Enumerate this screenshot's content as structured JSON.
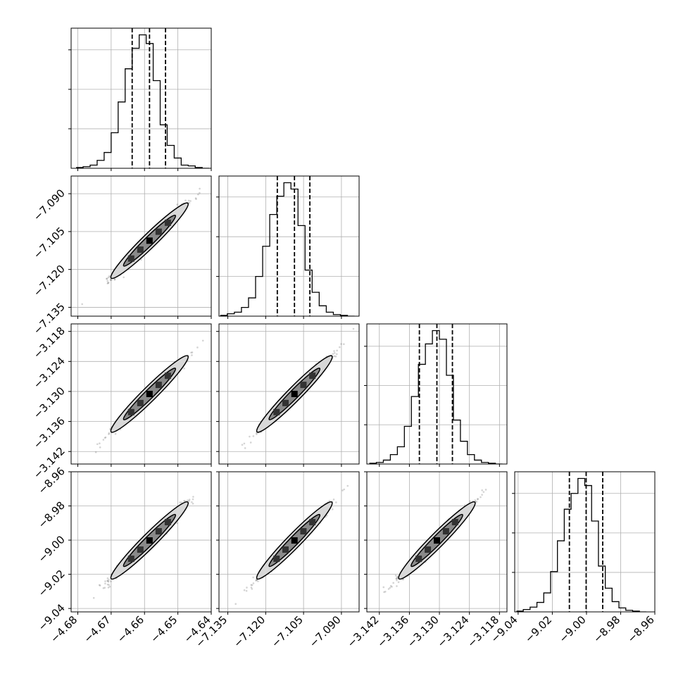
{
  "chart_data": {
    "type": "corner",
    "grid": true,
    "colors": {
      "line": "#000000",
      "grid": "#b0b0b0",
      "scatter": "#555555",
      "background": "#ffffff"
    },
    "parameters": [
      {
        "range": [
          -4.682,
          -4.64
        ],
        "ticks": [
          -4.68,
          -4.67,
          -4.66,
          -4.65,
          -4.64
        ],
        "tick_labels": [
          "−4.68",
          "−4.67",
          "−4.66",
          "−4.65",
          "−4.64"
        ],
        "quantiles": [
          -4.6637,
          -4.6585,
          -4.6537
        ],
        "histogram": {
          "bin_edges": [
            -4.6805,
            -4.6784,
            -4.6763,
            -4.6742,
            -4.6721,
            -4.67,
            -4.6679,
            -4.6658,
            -4.6637,
            -4.6616,
            -4.6595,
            -4.6574,
            -4.6553,
            -4.6532,
            -4.6511,
            -4.649,
            -4.6469,
            -4.6448,
            -4.6427,
            -4.6406
          ],
          "counts": [
            1,
            2,
            4,
            10,
            20,
            45,
            84,
            126,
            152,
            169,
            158,
            111,
            55,
            29,
            13,
            4,
            3,
            1,
            0
          ]
        }
      },
      {
        "range": [
          -7.1385,
          -7.083
        ],
        "ticks": [
          -7.135,
          -7.12,
          -7.105,
          -7.09
        ],
        "tick_labels": [
          "−7.135",
          "−7.120",
          "−7.105",
          "−7.090"
        ],
        "quantiles": [
          -7.1154,
          -7.1086,
          -7.1025
        ],
        "histogram": {
          "bin_edges": [
            -7.138,
            -7.1352,
            -7.1324,
            -7.1296,
            -7.1268,
            -7.124,
            -7.1212,
            -7.1184,
            -7.1156,
            -7.1128,
            -7.11,
            -7.1072,
            -7.1044,
            -7.1016,
            -7.0988,
            -7.096,
            -7.0932,
            -7.0904,
            -7.0876,
            -7.0848
          ],
          "counts": [
            1,
            3,
            5,
            11,
            23,
            50,
            88,
            128,
            151,
            168,
            160,
            114,
            58,
            30,
            13,
            5,
            2,
            1,
            0
          ]
        }
      },
      {
        "range": [
          -3.1445,
          -3.1165
        ],
        "ticks": [
          -3.142,
          -3.136,
          -3.13,
          -3.124,
          -3.118
        ],
        "tick_labels": [
          "−3.142",
          "−3.136",
          "−3.130",
          "−3.124",
          "−3.118"
        ],
        "quantiles": [
          -3.134,
          -3.1305,
          -3.1274
        ],
        "histogram": {
          "bin_edges": [
            -3.144,
            -3.1426,
            -3.1412,
            -3.1398,
            -3.1384,
            -3.137,
            -3.1356,
            -3.1342,
            -3.1328,
            -3.1314,
            -3.13,
            -3.1286,
            -3.1272,
            -3.1258,
            -3.1244,
            -3.123,
            -3.1216,
            -3.1202,
            -3.1188,
            -3.1174
          ],
          "counts": [
            1,
            2,
            5,
            12,
            22,
            48,
            86,
            127,
            153,
            170,
            159,
            113,
            56,
            29,
            12,
            5,
            2,
            1,
            0
          ]
        }
      },
      {
        "range": [
          -9.042,
          -8.96
        ],
        "ticks": [
          -9.04,
          -9.02,
          -9.0,
          -8.98,
          -8.96
        ],
        "tick_labels": [
          "−9.04",
          "−9.02",
          "−9.00",
          "−8.98",
          "−8.96"
        ],
        "quantiles": [
          -9.01,
          -9.0002,
          -8.9905
        ],
        "histogram": {
          "bin_edges": [
            -9.041,
            -9.037,
            -9.033,
            -9.029,
            -9.025,
            -9.021,
            -9.017,
            -9.013,
            -9.009,
            -9.005,
            -9.001,
            -8.997,
            -8.993,
            -8.989,
            -8.985,
            -8.981,
            -8.977,
            -8.973,
            -8.969,
            -8.965
          ],
          "counts": [
            1,
            3,
            6,
            12,
            24,
            51,
            90,
            130,
            150,
            169,
            160,
            115,
            58,
            30,
            13,
            5,
            2,
            1,
            0
          ]
        }
      }
    ]
  }
}
